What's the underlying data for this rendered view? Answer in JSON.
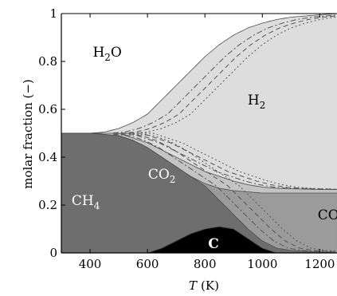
{
  "chart_data": {
    "type": "area",
    "xlabel": "T (K)",
    "xlabel_italic": "T",
    "xlabel_unit": "(K)",
    "ylabel": "molar fraction (−)",
    "xlim": [
      300,
      1260
    ],
    "ylim": [
      0,
      1
    ],
    "xticks": [
      400,
      600,
      800,
      1000,
      1200
    ],
    "yticks": [
      0,
      0.2,
      0.4,
      0.6,
      0.8,
      1
    ],
    "ytick_labels": [
      "0",
      "0.2",
      "0.4",
      "0.6",
      "0.8",
      "1"
    ],
    "grid": false,
    "stacking_order": [
      "C",
      "CH4",
      "CO",
      "CO2",
      "H2",
      "H2O"
    ],
    "boundaries": {
      "C_top": [
        [
          300,
          0
        ],
        [
          600,
          0
        ],
        [
          650,
          0.02
        ],
        [
          700,
          0.05
        ],
        [
          750,
          0.08
        ],
        [
          800,
          0.1
        ],
        [
          850,
          0.11
        ],
        [
          900,
          0.1
        ],
        [
          950,
          0.06
        ],
        [
          1000,
          0.02
        ],
        [
          1050,
          0
        ],
        [
          1260,
          0
        ]
      ],
      "CH4_top": [
        [
          300,
          0.5
        ],
        [
          400,
          0.5
        ],
        [
          500,
          0.49
        ],
        [
          550,
          0.47
        ],
        [
          600,
          0.44
        ],
        [
          650,
          0.4
        ],
        [
          700,
          0.36
        ],
        [
          750,
          0.32
        ],
        [
          800,
          0.28
        ],
        [
          850,
          0.22
        ],
        [
          900,
          0.16
        ],
        [
          950,
          0.1
        ],
        [
          1000,
          0.05
        ],
        [
          1050,
          0.02
        ],
        [
          1100,
          0.01
        ],
        [
          1260,
          0
        ]
      ],
      "CO_top": [
        [
          300,
          0.5
        ],
        [
          400,
          0.5
        ],
        [
          500,
          0.49
        ],
        [
          550,
          0.47
        ],
        [
          600,
          0.44
        ],
        [
          650,
          0.4
        ],
        [
          700,
          0.36
        ],
        [
          750,
          0.32
        ],
        [
          800,
          0.29
        ],
        [
          850,
          0.27
        ],
        [
          900,
          0.26
        ],
        [
          950,
          0.255
        ],
        [
          1000,
          0.25
        ],
        [
          1100,
          0.25
        ],
        [
          1200,
          0.25
        ],
        [
          1260,
          0.25
        ]
      ],
      "CO2_top": [
        [
          300,
          0.5
        ],
        [
          400,
          0.5
        ],
        [
          500,
          0.5
        ],
        [
          550,
          0.48
        ],
        [
          600,
          0.46
        ],
        [
          650,
          0.43
        ],
        [
          700,
          0.4
        ],
        [
          750,
          0.37
        ],
        [
          800,
          0.34
        ],
        [
          850,
          0.32
        ],
        [
          900,
          0.3
        ],
        [
          950,
          0.285
        ],
        [
          1000,
          0.275
        ],
        [
          1050,
          0.27
        ],
        [
          1100,
          0.268
        ],
        [
          1200,
          0.265
        ],
        [
          1260,
          0.265
        ]
      ],
      "H2_top": [
        [
          300,
          0.5
        ],
        [
          400,
          0.5
        ],
        [
          450,
          0.505
        ],
        [
          500,
          0.52
        ],
        [
          550,
          0.545
        ],
        [
          600,
          0.58
        ],
        [
          650,
          0.64
        ],
        [
          700,
          0.7
        ],
        [
          750,
          0.76
        ],
        [
          800,
          0.82
        ],
        [
          850,
          0.87
        ],
        [
          900,
          0.91
        ],
        [
          950,
          0.94
        ],
        [
          1000,
          0.96
        ],
        [
          1050,
          0.975
        ],
        [
          1100,
          0.985
        ],
        [
          1150,
          0.99
        ],
        [
          1200,
          0.995
        ],
        [
          1260,
          1.0
        ]
      ]
    },
    "region_colors": {
      "C": "#000000",
      "CH4": "#6e6e6e",
      "CO": "#9b9b9b",
      "CO2": "#c4c4c4",
      "H2": "#dddddd",
      "H2O": "#ffffff"
    },
    "annotations": [
      {
        "base": "H",
        "sub": "2",
        "tail": "O",
        "x": 460,
        "y": 0.82,
        "style": "dark"
      },
      {
        "base": "H",
        "sub": "2",
        "tail": "",
        "x": 980,
        "y": 0.62,
        "style": "dark"
      },
      {
        "base": "CO",
        "sub": "2",
        "tail": "",
        "x": 650,
        "y": 0.31,
        "style": "light"
      },
      {
        "base": "CH",
        "sub": "4",
        "tail": "",
        "x": 385,
        "y": 0.2,
        "style": "light"
      },
      {
        "base": "C",
        "sub": "",
        "tail": "",
        "x": 830,
        "y": 0.02,
        "style": "light-bold"
      },
      {
        "base": "CO",
        "sub": "",
        "tail": "",
        "x": 1230,
        "y": 0.14,
        "style": "dark"
      }
    ]
  }
}
